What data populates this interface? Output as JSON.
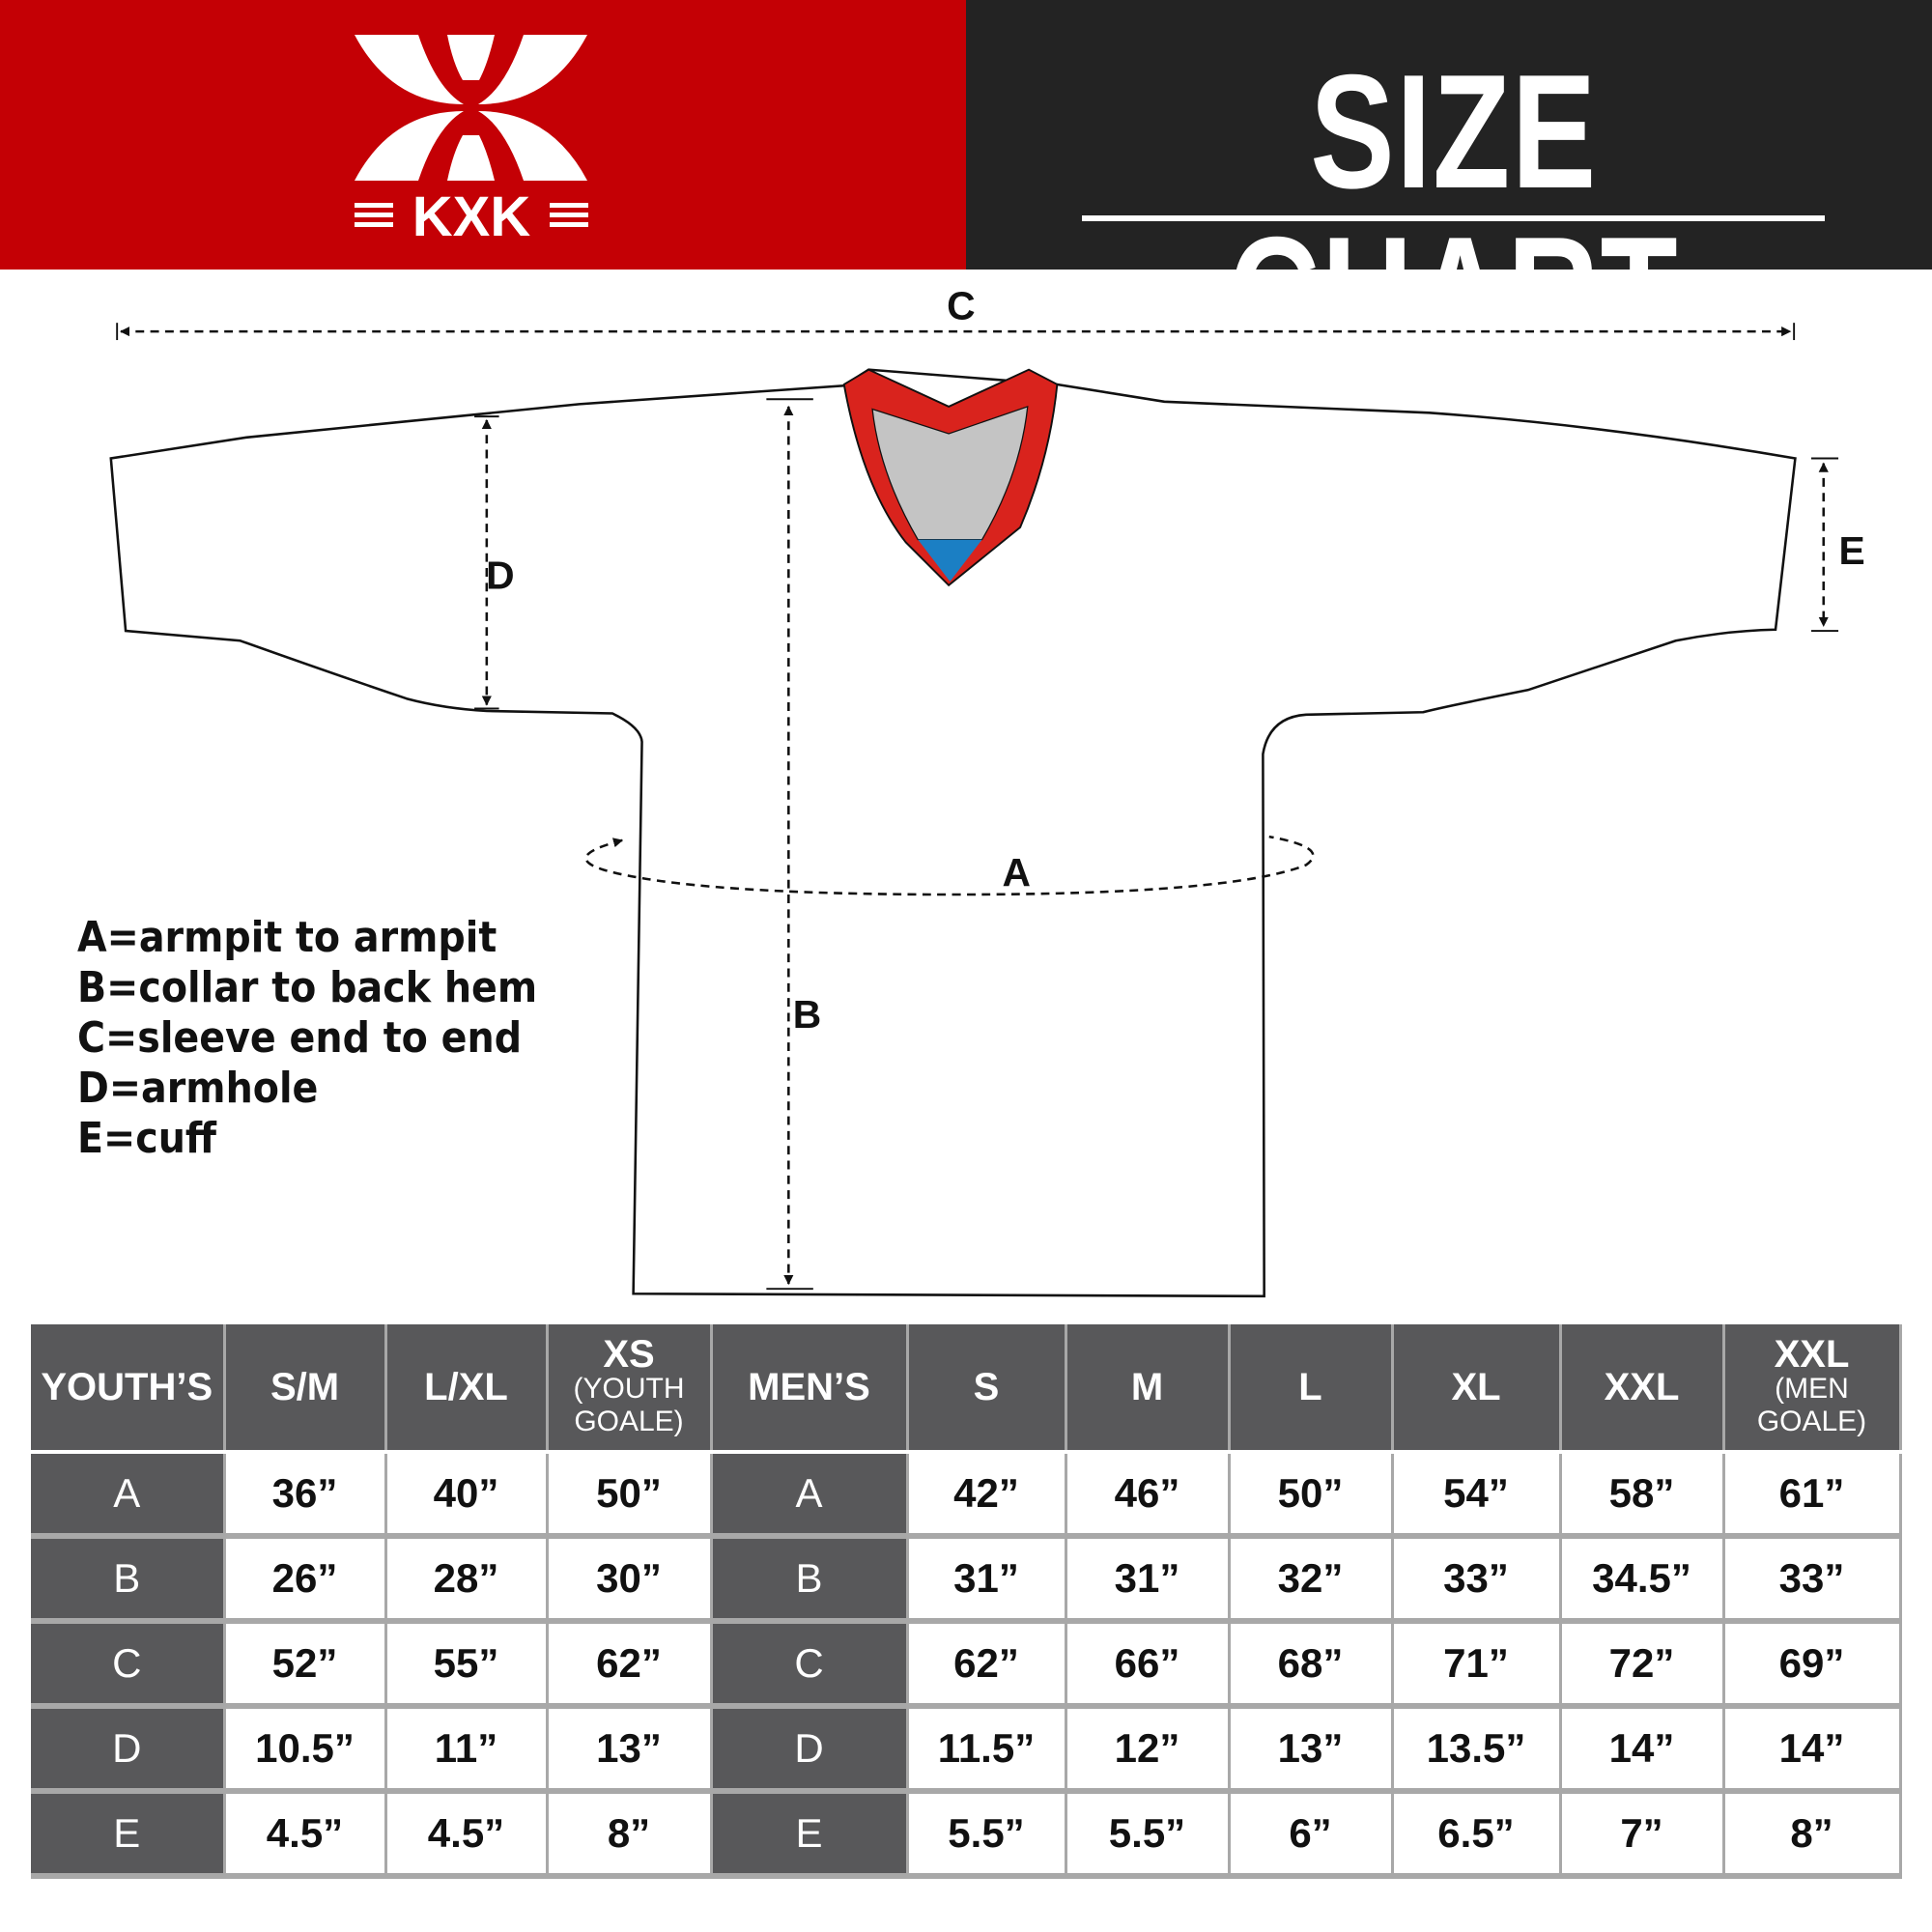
{
  "brand": {
    "logo_text": "KXK",
    "red": "#c40005",
    "dark": "#232323"
  },
  "header": {
    "title": "SIZE CHART"
  },
  "diagram": {
    "labels": {
      "a": "A",
      "b": "B",
      "c": "C",
      "d": "D",
      "e": "E"
    },
    "colors": {
      "collar_trim": "#d9231d",
      "collar_inner": "#c4c4c4",
      "collar_tip": "#1b7fc4"
    }
  },
  "legend": [
    "A=armpit to armpit",
    "B=collar to back hem",
    "C=sleeve end to end",
    "D=armhole",
    "E=cuff"
  ],
  "table": {
    "headers": [
      {
        "main": "YOUTH’S",
        "sub": ""
      },
      {
        "main": "S/M",
        "sub": ""
      },
      {
        "main": "L/XL",
        "sub": ""
      },
      {
        "main": "XS",
        "sub": "(YOUTH GOALE)"
      },
      {
        "main": "MEN’S",
        "sub": ""
      },
      {
        "main": "S",
        "sub": ""
      },
      {
        "main": "M",
        "sub": ""
      },
      {
        "main": "L",
        "sub": ""
      },
      {
        "main": "XL",
        "sub": ""
      },
      {
        "main": "XXL",
        "sub": ""
      },
      {
        "main": "XXL",
        "sub": "(MEN GOALE)"
      }
    ],
    "rows": [
      {
        "label": "A",
        "youth": [
          "36”",
          "40”",
          "50”"
        ],
        "men": [
          "42”",
          "46”",
          "50”",
          "54”",
          "58”",
          "61”"
        ]
      },
      {
        "label": "B",
        "youth": [
          "26”",
          "28”",
          "30”"
        ],
        "men": [
          "31”",
          "31”",
          "32”",
          "33”",
          "34.5”",
          "33”"
        ]
      },
      {
        "label": "C",
        "youth": [
          "52”",
          "55”",
          "62”"
        ],
        "men": [
          "62”",
          "66”",
          "68”",
          "71”",
          "72”",
          "69”"
        ]
      },
      {
        "label": "D",
        "youth": [
          "10.5”",
          "11”",
          "13”"
        ],
        "men": [
          "11.5”",
          "12”",
          "13”",
          "13.5”",
          "14”",
          "14”"
        ]
      },
      {
        "label": "E",
        "youth": [
          "4.5”",
          "4.5”",
          "8”"
        ],
        "men": [
          "5.5”",
          "5.5”",
          "6”",
          "6.5”",
          "7”",
          "8”"
        ]
      }
    ]
  }
}
